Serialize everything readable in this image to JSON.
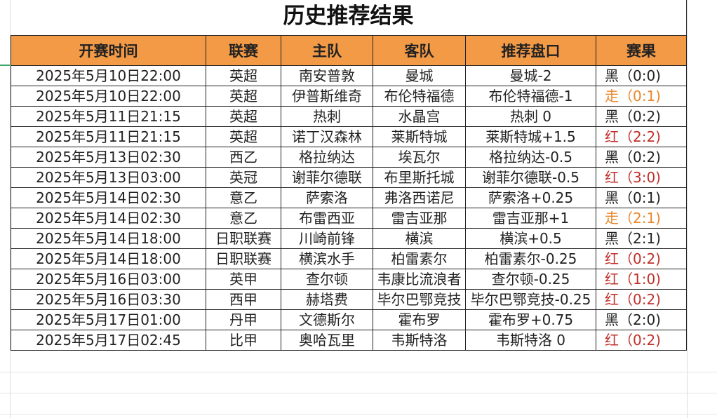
{
  "title": "历史推荐结果",
  "columns": [
    "开赛时间",
    "联赛",
    "主队",
    "客队",
    "推荐盘口",
    "赛果"
  ],
  "colors": {
    "header_bg": "#f39a46",
    "red": "#c0302a",
    "orange": "#e8862a",
    "black": "#222222"
  },
  "rows": [
    {
      "time": "2025年5月10日22:00",
      "league": "英超",
      "home": "南安普敦",
      "away": "曼城",
      "pick": "曼城-2",
      "result": "黑（0:0)",
      "status": "black"
    },
    {
      "time": "2025年5月10日22:00",
      "league": "英超",
      "home": "伊普斯维奇",
      "away": "布伦特福德",
      "pick": "布伦特福德-1",
      "result": "走（0:1)",
      "status": "orange"
    },
    {
      "time": "2025年5月11日21:15",
      "league": "英超",
      "home": "热刺",
      "away": "水晶宫",
      "pick": "热刺 0",
      "result": "黑（0:2)",
      "status": "black"
    },
    {
      "time": "2025年5月11日21:15",
      "league": "英超",
      "home": "诺丁汉森林",
      "away": "莱斯特城",
      "pick": "莱斯特城+1.5",
      "result": "红（2:2)",
      "status": "red"
    },
    {
      "time": "2025年5月13日02:30",
      "league": "西乙",
      "home": "格拉纳达",
      "away": "埃瓦尔",
      "pick": "格拉纳达-0.5",
      "result": "黑（0:2)",
      "status": "black"
    },
    {
      "time": "2025年5月13日03:00",
      "league": "英冠",
      "home": "谢菲尔德联",
      "away": "布里斯托城",
      "pick": "谢菲尔德联-0.5",
      "result": "红（3:0)",
      "status": "red"
    },
    {
      "time": "2025年5月14日02:30",
      "league": "意乙",
      "home": "萨索洛",
      "away": "弗洛西诺尼",
      "pick": "萨索洛+0.25",
      "result": "黑（0:1)",
      "status": "black"
    },
    {
      "time": "2025年5月14日02:30",
      "league": "意乙",
      "home": "布雷西亚",
      "away": "雷吉亚那",
      "pick": "雷吉亚那+1",
      "result": "走（2:1)",
      "status": "orange"
    },
    {
      "time": "2025年5月14日18:00",
      "league": "日职联赛",
      "home": "川崎前锋",
      "away": "横滨",
      "pick": "横滨+0.5",
      "result": "黑（2:1)",
      "status": "black"
    },
    {
      "time": "2025年5月14日18:00",
      "league": "日职联赛",
      "home": "横滨水手",
      "away": "柏雷素尔",
      "pick": "柏雷素尔-0.25",
      "result": "红（0:2)",
      "status": "red"
    },
    {
      "time": "2025年5月16日03:00",
      "league": "英甲",
      "home": "查尔顿",
      "away": "韦康比流浪者",
      "pick": "查尔顿-0.25",
      "result": "红（1:0)",
      "status": "red"
    },
    {
      "time": "2025年5月16日03:30",
      "league": "西甲",
      "home": "赫塔费",
      "away": "毕尔巴鄂竞技",
      "pick": "毕尔巴鄂竞技-0.25",
      "result": "红（0:2)",
      "status": "red"
    },
    {
      "time": "2025年5月17日01:00",
      "league": "丹甲",
      "home": "文德斯尔",
      "away": "霍布罗",
      "pick": "霍布罗+0.75",
      "result": "黑（2:0)",
      "status": "black"
    },
    {
      "time": "2025年5月17日02:45",
      "league": "比甲",
      "home": "奥哈瓦里",
      "away": "韦斯特洛",
      "pick": "韦斯特洛 0",
      "result": "红（0:2)",
      "status": "red"
    }
  ]
}
